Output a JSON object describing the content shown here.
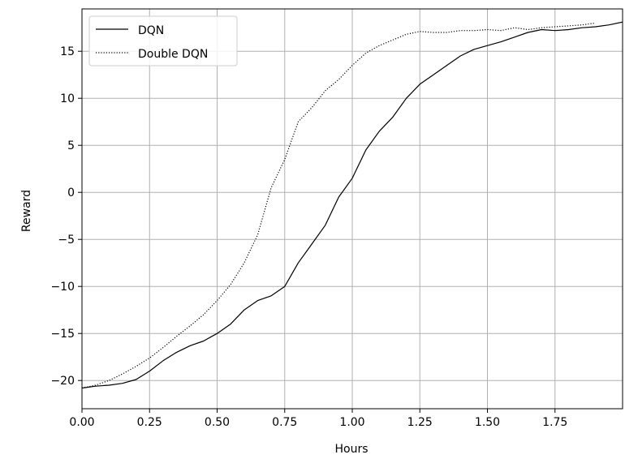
{
  "chart_data": {
    "type": "line",
    "title": "",
    "xlabel": "Hours",
    "ylabel": "Reward",
    "xlim": [
      0.0,
      2.0
    ],
    "ylim": [
      -23,
      19.5
    ],
    "xticks": [
      "0.00",
      "0.25",
      "0.50",
      "0.75",
      "1.00",
      "1.25",
      "1.50",
      "1.75"
    ],
    "yticks": [
      "−20",
      "−15",
      "−10",
      "−5",
      "0",
      "5",
      "10",
      "15"
    ],
    "grid": true,
    "legend_position": "top-left",
    "series": [
      {
        "name": "DQN",
        "style": "solid",
        "color": "#000000",
        "x": [
          0.0,
          0.05,
          0.1,
          0.15,
          0.2,
          0.25,
          0.3,
          0.35,
          0.4,
          0.45,
          0.5,
          0.55,
          0.6,
          0.65,
          0.7,
          0.75,
          0.8,
          0.85,
          0.9,
          0.95,
          1.0,
          1.05,
          1.1,
          1.15,
          1.2,
          1.25,
          1.3,
          1.35,
          1.4,
          1.45,
          1.5,
          1.55,
          1.6,
          1.65,
          1.7,
          1.75,
          1.8,
          1.85,
          1.9,
          1.95,
          2.0
        ],
        "y": [
          -20.8,
          -20.6,
          -20.5,
          -20.3,
          -19.9,
          -19.0,
          -17.9,
          -17.0,
          -16.3,
          -15.8,
          -15.0,
          -14.0,
          -12.5,
          -11.5,
          -11.0,
          -10.0,
          -7.5,
          -5.5,
          -3.5,
          -0.5,
          1.5,
          4.5,
          6.5,
          8.0,
          10.0,
          11.5,
          12.5,
          13.5,
          14.5,
          15.2,
          15.6,
          16.0,
          16.5,
          17.0,
          17.3,
          17.2,
          17.3,
          17.5,
          17.6,
          17.8,
          18.1
        ]
      },
      {
        "name": "Double DQN",
        "style": "dotted",
        "color": "#000000",
        "x": [
          0.0,
          0.05,
          0.1,
          0.15,
          0.2,
          0.25,
          0.3,
          0.35,
          0.4,
          0.45,
          0.5,
          0.55,
          0.6,
          0.65,
          0.7,
          0.75,
          0.8,
          0.85,
          0.9,
          0.95,
          1.0,
          1.05,
          1.1,
          1.15,
          1.2,
          1.25,
          1.3,
          1.35,
          1.4,
          1.45,
          1.5,
          1.55,
          1.6,
          1.65,
          1.7,
          1.75,
          1.8,
          1.85,
          1.9
        ],
        "y": [
          -20.8,
          -20.5,
          -20.0,
          -19.3,
          -18.5,
          -17.6,
          -16.5,
          -15.3,
          -14.2,
          -13.0,
          -11.5,
          -9.8,
          -7.5,
          -4.5,
          0.5,
          3.5,
          7.5,
          9.0,
          10.8,
          12.0,
          13.5,
          14.8,
          15.6,
          16.2,
          16.8,
          17.1,
          17.0,
          17.0,
          17.2,
          17.2,
          17.3,
          17.2,
          17.5,
          17.3,
          17.5,
          17.6,
          17.7,
          17.8,
          18.0
        ]
      }
    ]
  }
}
